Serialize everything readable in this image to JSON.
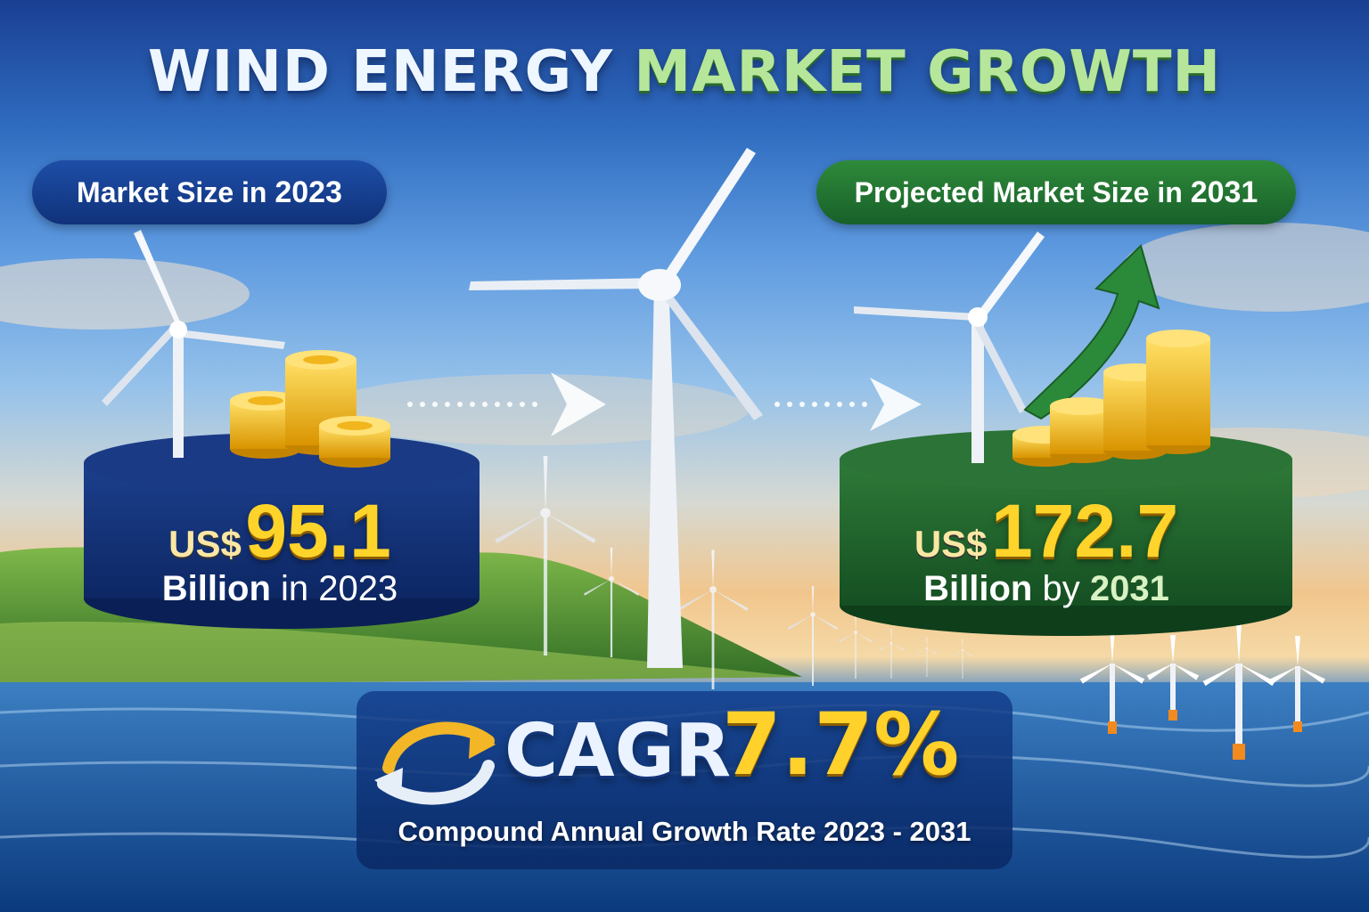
{
  "title": {
    "part1": "WIND ENERGY",
    "part2": "MARKET GROWTH"
  },
  "left": {
    "label": "Market Size in",
    "label_year": "2023",
    "currency": "US$",
    "value": "95.1",
    "unit": "Billion",
    "suffix": "in 2023"
  },
  "right": {
    "label": "Projected Market Size in",
    "label_year": "2031",
    "currency": "US$",
    "value": "172.7",
    "unit": "Billion",
    "suffix_word": "by",
    "suffix_year": "2031"
  },
  "cagr": {
    "label": "CAGR",
    "value": "7.7%",
    "caption": "Compound Annual Growth Rate  2023 - 2031"
  },
  "colors": {
    "navy": "#10327a",
    "green": "#17602a",
    "gold": "#ffd12a"
  },
  "icons": [
    "wind-turbine-icon",
    "coin-stack-icon",
    "growth-arrow-icon",
    "cycle-arrows-icon",
    "dotted-arrow-icon"
  ]
}
